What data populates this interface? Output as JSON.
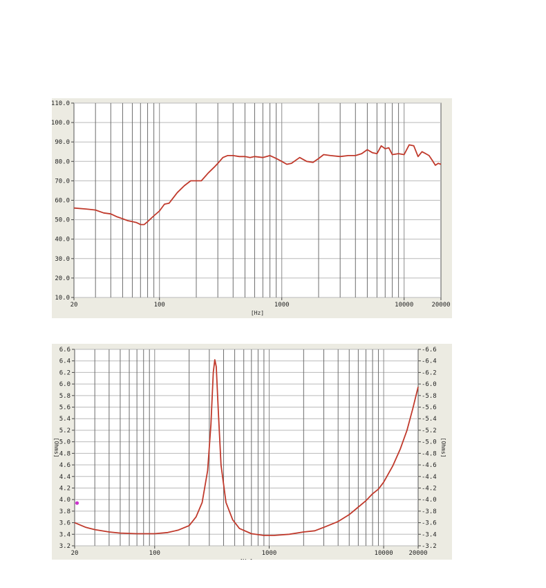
{
  "chart_data": [
    {
      "type": "line",
      "title": "",
      "xlabel": "[Hz]",
      "ylabel": "",
      "x_scale": "log",
      "xlim": [
        20,
        20000
      ],
      "ylim": [
        10,
        110
      ],
      "grid": true,
      "y_ticks": [
        "110.0",
        "100.0",
        "90.0",
        "80.0",
        "70.0",
        "60.0",
        "50.0",
        "40.0",
        "30.0",
        "20.0",
        "10.0"
      ],
      "x_ticks": [
        "20",
        "100",
        "1000",
        "10000",
        "20000"
      ],
      "line_color": "#c0392b",
      "series": [
        {
          "x": [
            20,
            25,
            30,
            35,
            40,
            45,
            50,
            55,
            60,
            65,
            70,
            75,
            80,
            90,
            100,
            110,
            120,
            140,
            160,
            180,
            200,
            220,
            250,
            280,
            300,
            330,
            360,
            400,
            450,
            500,
            550,
            600,
            700,
            800,
            900,
            1000,
            1100,
            1200,
            1400,
            1600,
            1800,
            2000,
            2200,
            2500,
            3000,
            3500,
            4000,
            4500,
            5000,
            5500,
            6000,
            6500,
            7000,
            7500,
            8000,
            9000,
            10000,
            11000,
            12000,
            13000,
            14000,
            15000,
            16000,
            17000,
            18000,
            19000,
            20000
          ],
          "y": [
            56,
            55.5,
            55,
            53.5,
            53,
            51.5,
            50.5,
            49.5,
            49,
            48.5,
            47.5,
            47.5,
            49,
            52,
            54.5,
            58,
            58.5,
            64,
            67.5,
            70,
            70,
            70,
            74,
            77,
            79,
            82,
            83,
            83,
            82.5,
            82.5,
            82,
            82.5,
            82,
            83,
            81.5,
            80,
            78.5,
            79,
            82,
            80,
            79.5,
            81.5,
            83.5,
            83,
            82.5,
            83,
            83,
            84,
            86,
            84.5,
            84,
            88,
            86.5,
            87,
            83.5,
            84,
            83.5,
            88.5,
            88,
            82.5,
            85,
            84,
            83,
            80.5,
            78,
            79,
            78.5
          ]
        }
      ]
    },
    {
      "type": "line",
      "title": "",
      "xlabel": "[Hz]",
      "ylabel": "[Ohms]",
      "y2label": "[Ohms]",
      "x_scale": "log",
      "xlim": [
        20,
        20000
      ],
      "ylim": [
        3.2,
        6.6
      ],
      "grid": true,
      "y_ticks": [
        "6.6",
        "6.4",
        "6.2",
        "6.0",
        "5.8",
        "5.6",
        "5.4",
        "5.2",
        "5.0",
        "4.8",
        "4.6",
        "4.4",
        "4.2",
        "4.0",
        "3.8",
        "3.6",
        "3.4",
        "3.2"
      ],
      "y2_ticks": [
        "-6.6",
        "-6.4",
        "-6.2",
        "-6.0",
        "-5.8",
        "-5.6",
        "-5.4",
        "-5.2",
        "-5.0",
        "-4.8",
        "-4.6",
        "-4.4",
        "-4.2",
        "-4.0",
        "-3.8",
        "-3.6",
        "-3.4",
        "-3.2"
      ],
      "x_ticks": [
        "20",
        "100",
        "1000",
        "10000",
        "20000"
      ],
      "line_color": "#c0392b",
      "marker_color": "#cc33cc",
      "series": [
        {
          "x": [
            20,
            25,
            30,
            40,
            50,
            70,
            100,
            130,
            160,
            200,
            230,
            260,
            290,
            310,
            325,
            335,
            345,
            360,
            380,
            420,
            480,
            550,
            700,
            900,
            1100,
            1500,
            2000,
            2500,
            3000,
            4000,
            5000,
            6000,
            7000,
            8000,
            9000,
            10000,
            12000,
            14000,
            16000,
            18000,
            20000
          ],
          "y": [
            3.6,
            3.52,
            3.48,
            3.44,
            3.42,
            3.41,
            3.41,
            3.43,
            3.47,
            3.55,
            3.7,
            3.95,
            4.5,
            5.3,
            6.2,
            6.42,
            6.3,
            5.5,
            4.6,
            3.95,
            3.65,
            3.5,
            3.41,
            3.38,
            3.38,
            3.4,
            3.44,
            3.46,
            3.52,
            3.62,
            3.74,
            3.87,
            3.98,
            4.1,
            4.18,
            4.3,
            4.58,
            4.88,
            5.2,
            5.58,
            5.95
          ]
        }
      ],
      "markers": [
        {
          "x": 21,
          "y": 3.94
        }
      ]
    }
  ]
}
